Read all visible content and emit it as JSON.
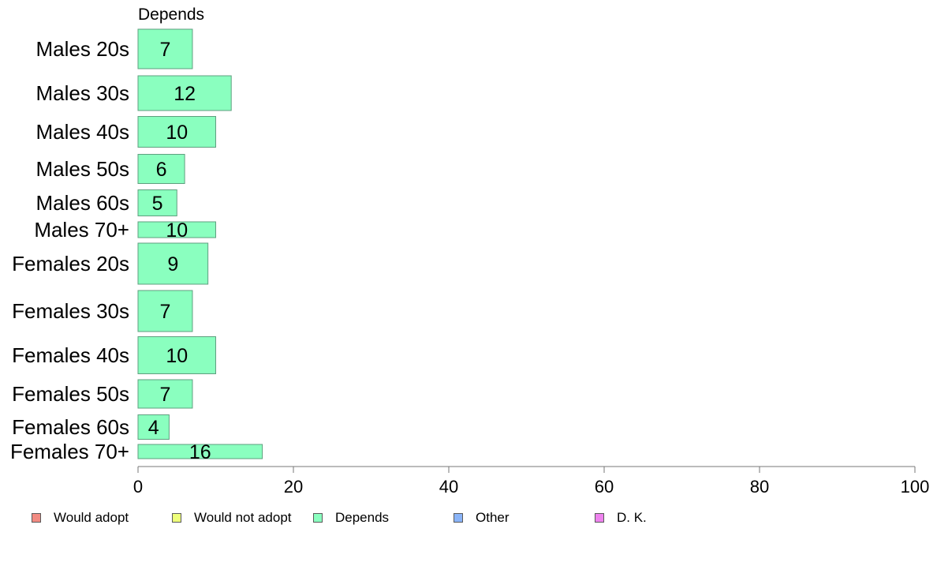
{
  "chart_data": {
    "type": "bar",
    "orientation": "horizontal",
    "title": "Depends",
    "categories": [
      "Males 20s",
      "Males 30s",
      "Males 40s",
      "Males 50s",
      "Males 60s",
      "Males 70+",
      "Females 20s",
      "Females 30s",
      "Females 40s",
      "Females 50s",
      "Females 60s",
      "Females 70+"
    ],
    "series": [
      {
        "name": "Depends",
        "color": "#8affbf",
        "values": [
          7,
          12,
          10,
          6,
          5,
          10,
          9,
          7,
          10,
          7,
          4,
          16
        ]
      }
    ],
    "data_labels": [
      "7",
      "12",
      "10",
      "6",
      "5",
      "10",
      "9",
      "7",
      "10",
      "7",
      "4",
      "16"
    ],
    "xlim": [
      0,
      100
    ],
    "xticks": [
      0,
      20,
      40,
      60,
      80,
      100
    ],
    "xtick_labels": [
      "0",
      "20",
      "40",
      "60",
      "80",
      "100"
    ],
    "grid": false,
    "legend_position": "bottom",
    "legend": [
      {
        "label": "Would adopt",
        "color": "#f28b82"
      },
      {
        "label": "Would not adopt",
        "color": "#eeff7a"
      },
      {
        "label": "Depends",
        "color": "#8affbf"
      },
      {
        "label": "Other",
        "color": "#8ab4f8"
      },
      {
        "label": "D. K.",
        "color": "#ee82ee"
      }
    ]
  }
}
